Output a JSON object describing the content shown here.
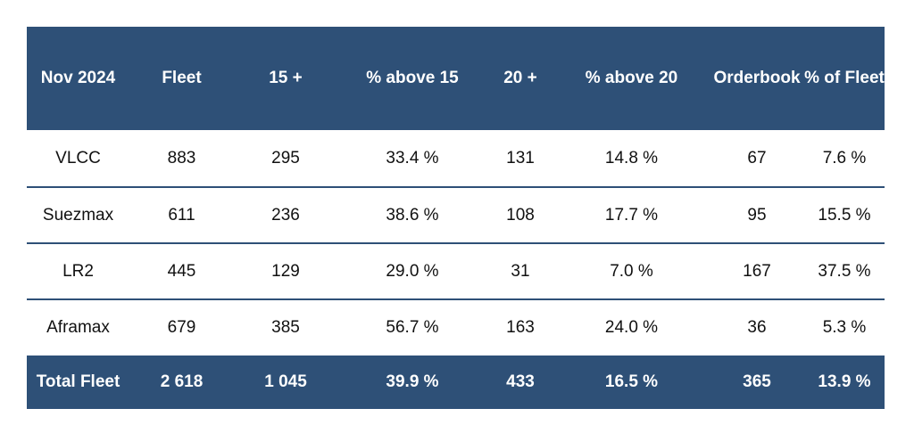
{
  "table": {
    "headers": [
      "Nov 2024",
      "Fleet",
      "15 +",
      "% above 15",
      "20 +",
      "% above 20",
      "Orderbook",
      "% of Fleet"
    ],
    "rows": [
      [
        "VLCC",
        "883",
        "295",
        "33.4 %",
        "131",
        "14.8 %",
        "67",
        "7.6 %"
      ],
      [
        "Suezmax",
        "611",
        "236",
        "38.6 %",
        "108",
        "17.7 %",
        "95",
        "15.5 %"
      ],
      [
        "LR2",
        "445",
        "129",
        "29.0 %",
        "31",
        "7.0 %",
        "167",
        "37.5 %"
      ],
      [
        "Aframax",
        "679",
        "385",
        "56.7 %",
        "163",
        "24.0 %",
        "36",
        "5.3 %"
      ]
    ],
    "total": [
      "Total Fleet",
      "2 618",
      "1 045",
      "39.9 %",
      "433",
      "16.5 %",
      "365",
      "13.9 %"
    ]
  },
  "colors": {
    "header_bg": "#2e5077",
    "header_text": "#ffffff",
    "row_divider": "#2e5077"
  }
}
